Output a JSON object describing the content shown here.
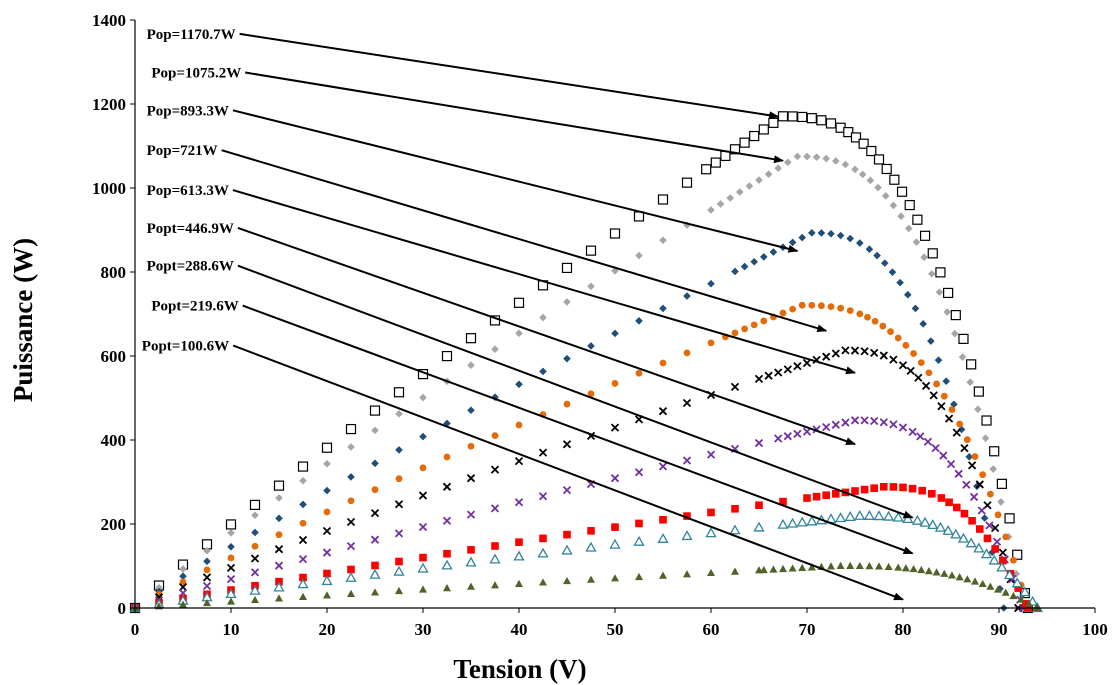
{
  "chart_data": {
    "type": "scatter",
    "title": "",
    "xlabel": "Tension (V)",
    "ylabel": "Puissance (W)",
    "xlim": [
      0,
      100
    ],
    "ylim": [
      0,
      1400
    ],
    "xticks": [
      0,
      10,
      20,
      30,
      40,
      50,
      60,
      70,
      80,
      90,
      100
    ],
    "yticks": [
      0,
      200,
      400,
      600,
      800,
      1000,
      1200,
      1400
    ],
    "grid": false,
    "legend": "none",
    "series": [
      {
        "marker": "square-open",
        "color": "#000000",
        "vmp": 67.5,
        "pmax": 1170.7,
        "voc": 93
      },
      {
        "marker": "diamond",
        "color": "#a6a6a6",
        "vmp": 69,
        "pmax": 1075.2,
        "voc": 92.5
      },
      {
        "marker": "diamond",
        "color": "#1f4e79",
        "vmp": 70.5,
        "pmax": 893.3,
        "voc": 90.5
      },
      {
        "marker": "circle",
        "color": "#e36c09",
        "vmp": 69.5,
        "pmax": 721,
        "voc": 93
      },
      {
        "marker": "x",
        "color": "#000000",
        "vmp": 74,
        "pmax": 613.3,
        "voc": 92
      },
      {
        "marker": "x",
        "color": "#7030a0",
        "vmp": 75,
        "pmax": 446.9,
        "voc": 92.5
      },
      {
        "marker": "square",
        "color": "#ff0000",
        "vmp": 78,
        "pmax": 288.6,
        "voc": 93
      },
      {
        "marker": "triangle-open",
        "color": "#31849b",
        "vmp": 75.5,
        "pmax": 219.6,
        "voc": 94
      },
      {
        "marker": "triangle",
        "color": "#4f6228",
        "vmp": 73.5,
        "pmax": 100.6,
        "voc": 94
      }
    ],
    "annotations": [
      {
        "text": "Pop=1170.7W",
        "label_x": 1,
        "label_y": 1367,
        "arrow_x": 67,
        "arrow_y": 1170
      },
      {
        "text": "Pop=1075.2W",
        "label_x": 1.5,
        "label_y": 1275,
        "arrow_x": 67.5,
        "arrow_y": 1065
      },
      {
        "text": "Pop=893.3W",
        "label_x": 1,
        "label_y": 1185,
        "arrow_x": 69,
        "arrow_y": 850
      },
      {
        "text": "Pop=721W",
        "label_x": 1,
        "label_y": 1090,
        "arrow_x": 72,
        "arrow_y": 660
      },
      {
        "text": "Pop=613.3W",
        "label_x": 1,
        "label_y": 995,
        "arrow_x": 75,
        "arrow_y": 560
      },
      {
        "text": "Popt=446.9W",
        "label_x": 1,
        "label_y": 905,
        "arrow_x": 75,
        "arrow_y": 390
      },
      {
        "text": "Popt=288.6W",
        "label_x": 1,
        "label_y": 815,
        "arrow_x": 81,
        "arrow_y": 215
      },
      {
        "text": "Popt=219.6W",
        "label_x": 1.5,
        "label_y": 720,
        "arrow_x": 81,
        "arrow_y": 130
      },
      {
        "text": "Popt=100.6W",
        "label_x": 0.5,
        "label_y": 625,
        "arrow_x": 80,
        "arrow_y": 20
      }
    ]
  }
}
